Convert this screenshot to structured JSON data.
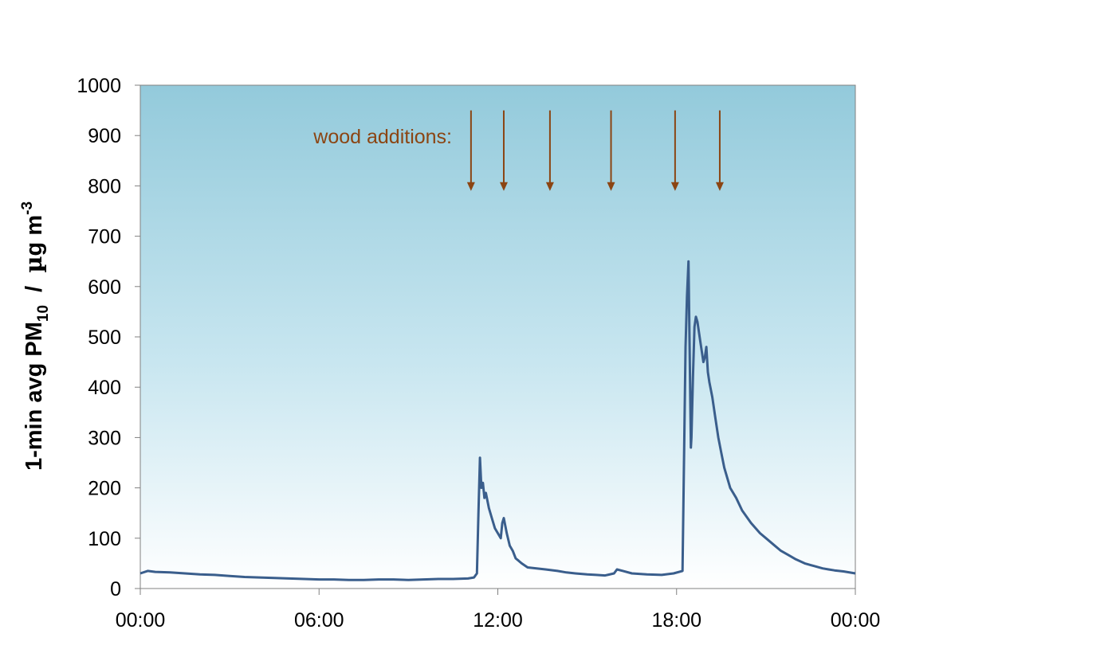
{
  "chart_data": {
    "type": "line",
    "title": "",
    "xlabel": "",
    "ylabel": {
      "main": "1-min avg PM",
      "sub": "10",
      "sep": "  /  ",
      "mu": "µ",
      "unit_rest": "g m",
      "sup": "-3"
    },
    "xlim": [
      0,
      24
    ],
    "ylim": [
      0,
      1000
    ],
    "x_ticks": [
      0,
      6,
      12,
      18,
      24
    ],
    "x_tick_labels": [
      "00:00",
      "06:00",
      "12:00",
      "18:00",
      "00:00"
    ],
    "y_ticks": [
      0,
      100,
      200,
      300,
      400,
      500,
      600,
      700,
      800,
      900,
      1000
    ],
    "y_tick_labels": [
      "0",
      "100",
      "200",
      "300",
      "400",
      "500",
      "600",
      "700",
      "800",
      "900",
      "1000"
    ],
    "grid": false,
    "series": [
      {
        "line_color": "#3a5e8c",
        "x": [
          0.0,
          0.25,
          0.5,
          1.0,
          1.5,
          2.0,
          2.5,
          3.0,
          3.5,
          4.0,
          4.5,
          5.0,
          5.5,
          6.0,
          6.5,
          7.0,
          7.5,
          8.0,
          8.5,
          9.0,
          9.5,
          10.0,
          10.5,
          11.0,
          11.2,
          11.3,
          11.35,
          11.4,
          11.45,
          11.5,
          11.55,
          11.6,
          11.7,
          11.8,
          11.9,
          12.0,
          12.1,
          12.15,
          12.2,
          12.3,
          12.4,
          12.5,
          12.6,
          12.7,
          12.8,
          13.0,
          13.3,
          13.6,
          14.0,
          14.3,
          14.6,
          15.0,
          15.3,
          15.6,
          15.9,
          16.0,
          16.2,
          16.5,
          17.0,
          17.5,
          17.9,
          18.2,
          18.3,
          18.35,
          18.4,
          18.45,
          18.48,
          18.5,
          18.55,
          18.6,
          18.65,
          18.7,
          18.8,
          18.9,
          18.95,
          19.0,
          19.05,
          19.1,
          19.2,
          19.3,
          19.4,
          19.5,
          19.6,
          19.8,
          20.0,
          20.2,
          20.5,
          20.8,
          21.0,
          21.3,
          21.5,
          21.8,
          22.0,
          22.3,
          22.6,
          22.9,
          23.1,
          23.3,
          23.6,
          24.0
        ],
        "y": [
          30,
          35,
          33,
          32,
          30,
          28,
          27,
          25,
          23,
          22,
          21,
          20,
          19,
          18,
          18,
          17,
          17,
          18,
          18,
          17,
          18,
          19,
          19,
          20,
          22,
          30,
          150,
          260,
          200,
          210,
          180,
          190,
          160,
          140,
          120,
          110,
          100,
          130,
          140,
          110,
          85,
          75,
          60,
          55,
          50,
          42,
          40,
          38,
          35,
          32,
          30,
          28,
          27,
          26,
          30,
          38,
          35,
          30,
          28,
          27,
          30,
          35,
          480,
          580,
          650,
          420,
          280,
          300,
          420,
          520,
          540,
          530,
          490,
          450,
          460,
          480,
          430,
          410,
          380,
          340,
          300,
          270,
          240,
          200,
          180,
          155,
          130,
          110,
          100,
          85,
          75,
          65,
          58,
          50,
          45,
          40,
          38,
          36,
          34,
          30
        ]
      }
    ],
    "annotations": {
      "label": "wood additions:",
      "arrow_times": [
        11.1,
        12.2,
        13.75,
        15.8,
        17.95,
        19.45
      ]
    }
  }
}
